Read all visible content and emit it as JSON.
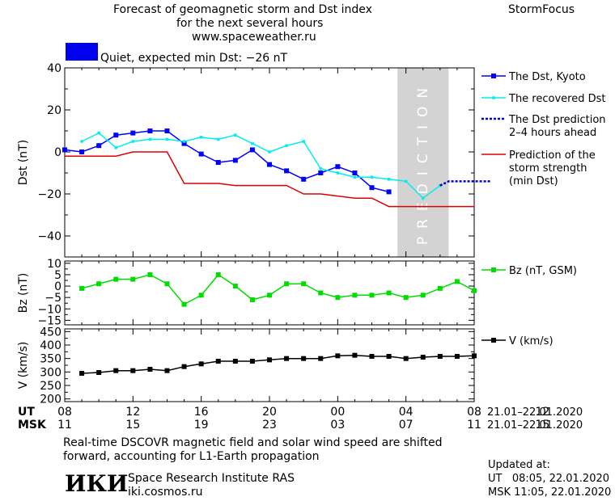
{
  "header": {
    "title_line1": "Forecast of geomagnetic storm and Dst index",
    "title_line2": "for the next several hours",
    "website": "www.spaceweather.ru",
    "brand": "StormFocus",
    "status_text": "Quiet, expected min Dst: −26 nT",
    "status_color": "#0000ee"
  },
  "footer": {
    "note_line1": "Real-time DSCOVR magnetic field and solar wind speed are shifted",
    "note_line2": "forward, accounting for L1-Earth propagation",
    "logo_text": "ИКИ",
    "institute": "Space Research Institute RAS",
    "institute_site": "iki.cosmos.ru",
    "updated_label": "Updated at:",
    "updated_ut": "UT   08:05, 22.01.2020",
    "updated_msk": "MSK 11:05, 22.01.2020"
  },
  "chart_data": [
    {
      "type": "line",
      "panel": "dst",
      "ylabel": "Dst (nT)",
      "ylim": [
        -50,
        40
      ],
      "yticks": [
        40,
        20,
        0,
        -20,
        -40
      ],
      "xlim": [
        8,
        32
      ],
      "prediction_band": {
        "x": [
          27.5,
          30.5
        ],
        "label": "PREDICTION",
        "color": "#d3d3d3"
      },
      "series": [
        {
          "name": "The Dst, Kyoto",
          "color": "#0000ff",
          "marker": "square",
          "x": [
            8,
            9,
            10,
            11,
            12,
            13,
            14,
            15,
            16,
            17,
            18,
            19,
            20,
            21,
            22,
            23,
            24,
            25,
            26,
            27
          ],
          "y": [
            1,
            0,
            3,
            8,
            9,
            10,
            10,
            4,
            -1,
            -5,
            -4,
            1,
            -6,
            -9,
            -13,
            -10,
            -7,
            -10,
            -17,
            -19
          ]
        },
        {
          "name": "The recovered Dst",
          "color": "#00eeee",
          "marker": "dot",
          "x": [
            9,
            10,
            11,
            12,
            13,
            14,
            15,
            16,
            17,
            18,
            19,
            20,
            21,
            22,
            23,
            24,
            25,
            26,
            27,
            28,
            29,
            30
          ],
          "y": [
            5,
            9,
            2,
            5,
            6,
            6,
            5,
            7,
            6,
            8,
            4,
            0,
            3,
            5,
            -8,
            -10,
            -12,
            -12,
            -13,
            -14,
            -22,
            -16
          ]
        },
        {
          "name": "The Dst prediction\n2–4 hours ahead",
          "color": "#0000cc",
          "marker": "none",
          "dash": true,
          "x": [
            30,
            30.5,
            31,
            32,
            33
          ],
          "y": [
            -16,
            -14,
            -14,
            -14,
            -14
          ]
        },
        {
          "name": "Prediction of the\nstorm strength\n(min Dst)",
          "color": "#dd0000",
          "marker": "none",
          "step": true,
          "x": [
            8,
            11,
            12,
            14,
            15,
            17,
            18,
            21,
            22,
            23,
            25,
            26,
            27,
            28,
            32
          ],
          "y": [
            -2,
            -2,
            0,
            0,
            -15,
            -15,
            -16,
            -16,
            -20,
            -20,
            -22,
            -22,
            -26,
            -26,
            -26
          ]
        }
      ]
    },
    {
      "type": "line",
      "panel": "bz",
      "ylabel": "Bz (nT)",
      "ylim": [
        -17,
        11
      ],
      "yticks": [
        10,
        5,
        0,
        -5,
        -10,
        -15
      ],
      "series": [
        {
          "name": "Bz (nT, GSM)",
          "color": "#00dd00",
          "marker": "square",
          "x": [
            9,
            10,
            11,
            12,
            13,
            14,
            15,
            16,
            17,
            18,
            19,
            20,
            21,
            22,
            23,
            24,
            25,
            26,
            27,
            28,
            29,
            30,
            31,
            32
          ],
          "y": [
            -1,
            1,
            3,
            3,
            5,
            1,
            -8,
            -4,
            5,
            0,
            -6,
            -4,
            1,
            1,
            -3,
            -5,
            -4,
            -4,
            -3,
            -5,
            -4,
            -1,
            2,
            -2
          ]
        }
      ]
    },
    {
      "type": "line",
      "panel": "v",
      "ylabel": "V (km/s)",
      "ylim": [
        190,
        460
      ],
      "yticks": [
        450,
        400,
        350,
        300,
        250,
        200
      ],
      "series": [
        {
          "name": "V (km/s)",
          "color": "#000000",
          "marker": "square",
          "x": [
            9,
            10,
            11,
            12,
            13,
            14,
            15,
            16,
            17,
            18,
            19,
            20,
            21,
            22,
            23,
            24,
            25,
            26,
            27,
            28,
            29,
            30,
            31,
            32
          ],
          "y": [
            295,
            298,
            305,
            305,
            310,
            305,
            320,
            330,
            340,
            340,
            340,
            345,
            350,
            350,
            350,
            360,
            362,
            358,
            358,
            350,
            355,
            358,
            358,
            360
          ]
        }
      ]
    }
  ],
  "time_axis": {
    "ut_label": "UT",
    "msk_label": "MSK",
    "ut_ticks": [
      "08",
      "12",
      "16",
      "20",
      "00",
      "04",
      "08",
      "12"
    ],
    "msk_ticks": [
      "11",
      "15",
      "19",
      "23",
      "03",
      "07",
      "11",
      "15"
    ],
    "ut_date": "21.01–22.01.2020",
    "msk_date": "21.01–22.01.2020"
  }
}
